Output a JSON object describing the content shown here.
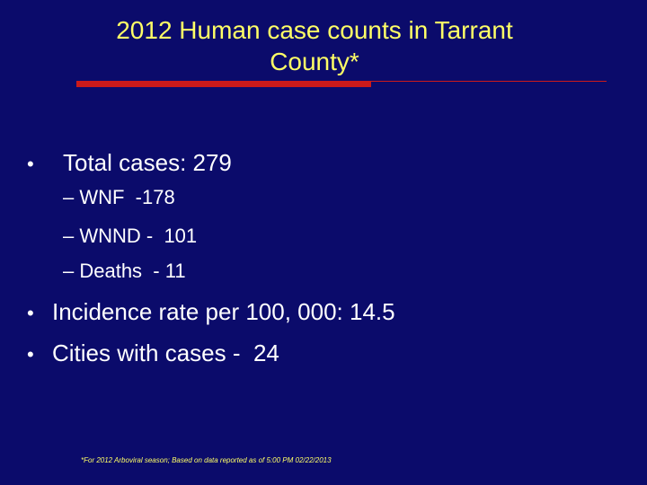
{
  "slide": {
    "title_lines": [
      "2012 Human case counts in Tarrant",
      "County*"
    ],
    "bullets": [
      {
        "text": "Total cases: 279",
        "sub_items": [
          "– WNF  -178",
          "– WNND -  101",
          "– Deaths  - 11"
        ]
      },
      {
        "text": "Incidence rate per 100, 000: 14.5"
      },
      {
        "text": "Cities with cases -  24"
      }
    ],
    "footnote": "*For 2012 Arboviral season; Based on data reported as of 5:00 PM 02/22/2013"
  }
}
